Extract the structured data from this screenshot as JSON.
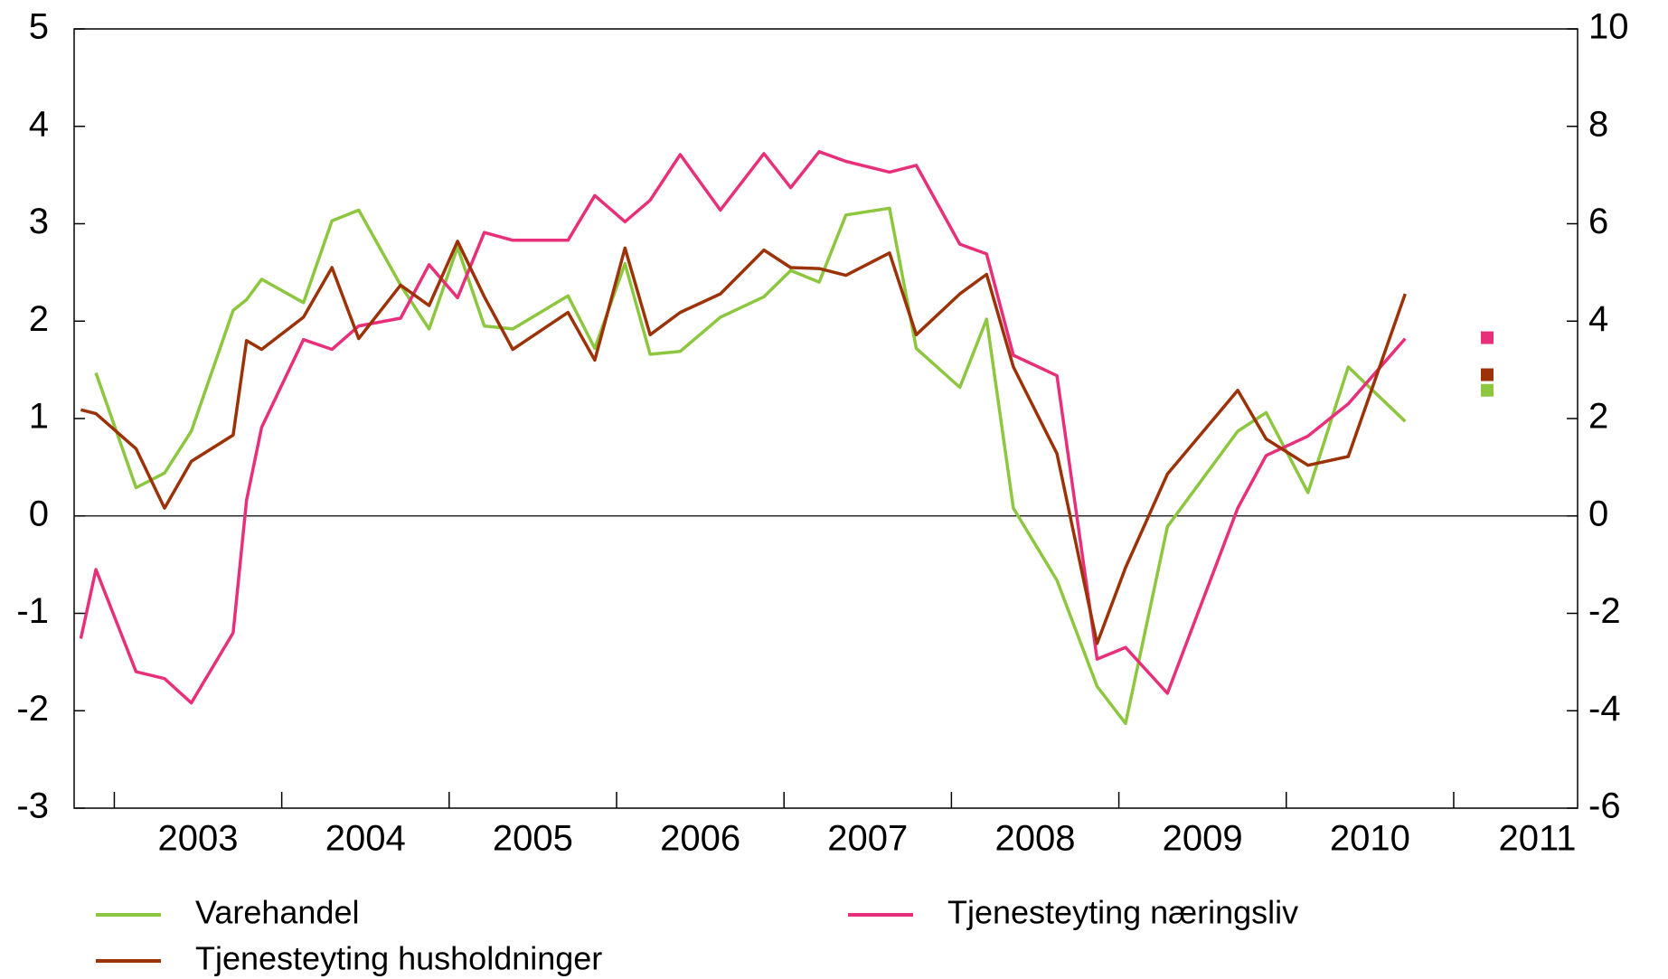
{
  "chart_data": {
    "type": "line",
    "xlim": [
      2002.76,
      2011.74
    ],
    "xticks": [
      2003,
      2004,
      2005,
      2006,
      2007,
      2008,
      2009,
      2010,
      2011
    ],
    "ylim": [
      -3,
      5
    ],
    "yticks": [
      -3,
      -2,
      -1,
      0,
      1,
      2,
      3,
      4,
      5
    ],
    "y2lim": [
      -6,
      10
    ],
    "y2ticks": [
      -6,
      -4,
      -2,
      0,
      2,
      4,
      6,
      8,
      10
    ],
    "zero_line": true,
    "series": [
      {
        "name": "Varehandel",
        "color": "#8dc63f",
        "x": [
          2002.89,
          2003.13,
          2003.3,
          2003.46,
          2003.71,
          2003.79,
          2003.88,
          2004.13,
          2004.3,
          2004.46,
          2004.71,
          2004.88,
          2005.05,
          2005.21,
          2005.38,
          2005.71,
          2005.87,
          2006.05,
          2006.2,
          2006.38,
          2006.62,
          2006.88,
          2007.04,
          2007.21,
          2007.37,
          2007.63,
          2007.79,
          2008.05,
          2008.21,
          2008.37,
          2008.63,
          2008.87,
          2009.04,
          2009.29,
          2009.71,
          2009.88,
          2010.13,
          2010.37,
          2010.71
        ],
        "values": [
          1.47,
          0.29,
          0.44,
          0.87,
          2.11,
          2.22,
          2.43,
          2.19,
          3.03,
          3.14,
          2.37,
          1.92,
          2.76,
          1.95,
          1.92,
          2.26,
          1.72,
          2.59,
          1.66,
          1.69,
          2.04,
          2.25,
          2.52,
          2.4,
          3.09,
          3.16,
          1.72,
          1.32,
          2.02,
          0.08,
          -0.66,
          -1.75,
          -2.13,
          -0.11,
          0.87,
          1.06,
          0.24,
          1.53,
          0.97
        ],
        "marker_x": 2011.2,
        "marker_value": 1.29
      },
      {
        "name": "Tjenesteyting næringsliv",
        "color": "#e8307a",
        "x": [
          2002.8,
          2002.89,
          2003.13,
          2003.3,
          2003.46,
          2003.71,
          2003.79,
          2003.88,
          2004.13,
          2004.3,
          2004.46,
          2004.71,
          2004.88,
          2005.05,
          2005.21,
          2005.38,
          2005.71,
          2005.87,
          2006.05,
          2006.2,
          2006.38,
          2006.62,
          2006.88,
          2007.04,
          2007.21,
          2007.37,
          2007.63,
          2007.79,
          2008.05,
          2008.21,
          2008.37,
          2008.63,
          2008.87,
          2009.04,
          2009.29,
          2009.71,
          2009.88,
          2010.13,
          2010.37,
          2010.71
        ],
        "values": [
          -1.26,
          -0.55,
          -1.6,
          -1.67,
          -1.92,
          -1.2,
          0.16,
          0.91,
          1.81,
          1.71,
          1.95,
          2.03,
          2.58,
          2.24,
          2.91,
          2.83,
          2.83,
          3.29,
          3.02,
          3.24,
          3.71,
          3.14,
          3.72,
          3.37,
          3.74,
          3.64,
          3.53,
          3.6,
          2.79,
          2.69,
          1.65,
          1.44,
          -1.47,
          -1.35,
          -1.82,
          0.08,
          0.62,
          0.82,
          1.15,
          1.82
        ],
        "marker_x": 2011.2,
        "marker_value": 1.83
      },
      {
        "name": "Tjenesteyting husholdninger",
        "color": "#9c3208",
        "x": [
          2002.8,
          2002.89,
          2003.13,
          2003.3,
          2003.46,
          2003.71,
          2003.79,
          2003.88,
          2004.13,
          2004.3,
          2004.46,
          2004.71,
          2004.88,
          2005.05,
          2005.21,
          2005.38,
          2005.71,
          2005.87,
          2006.05,
          2006.2,
          2006.38,
          2006.62,
          2006.88,
          2007.04,
          2007.21,
          2007.37,
          2007.63,
          2007.79,
          2008.05,
          2008.21,
          2008.37,
          2008.63,
          2008.87,
          2009.04,
          2009.29,
          2009.71,
          2009.88,
          2010.13,
          2010.37,
          2010.71
        ],
        "values": [
          1.09,
          1.05,
          0.69,
          0.08,
          0.56,
          0.83,
          1.8,
          1.71,
          2.04,
          2.55,
          1.82,
          2.37,
          2.16,
          2.82,
          2.25,
          1.71,
          2.09,
          1.6,
          2.75,
          1.86,
          2.09,
          2.28,
          2.73,
          2.55,
          2.54,
          2.47,
          2.7,
          1.86,
          2.28,
          2.48,
          1.53,
          0.64,
          -1.31,
          -0.53,
          0.43,
          1.29,
          0.79,
          0.52,
          0.61,
          2.28
        ],
        "marker_x": 2011.2,
        "marker_value": 1.45
      }
    ]
  }
}
